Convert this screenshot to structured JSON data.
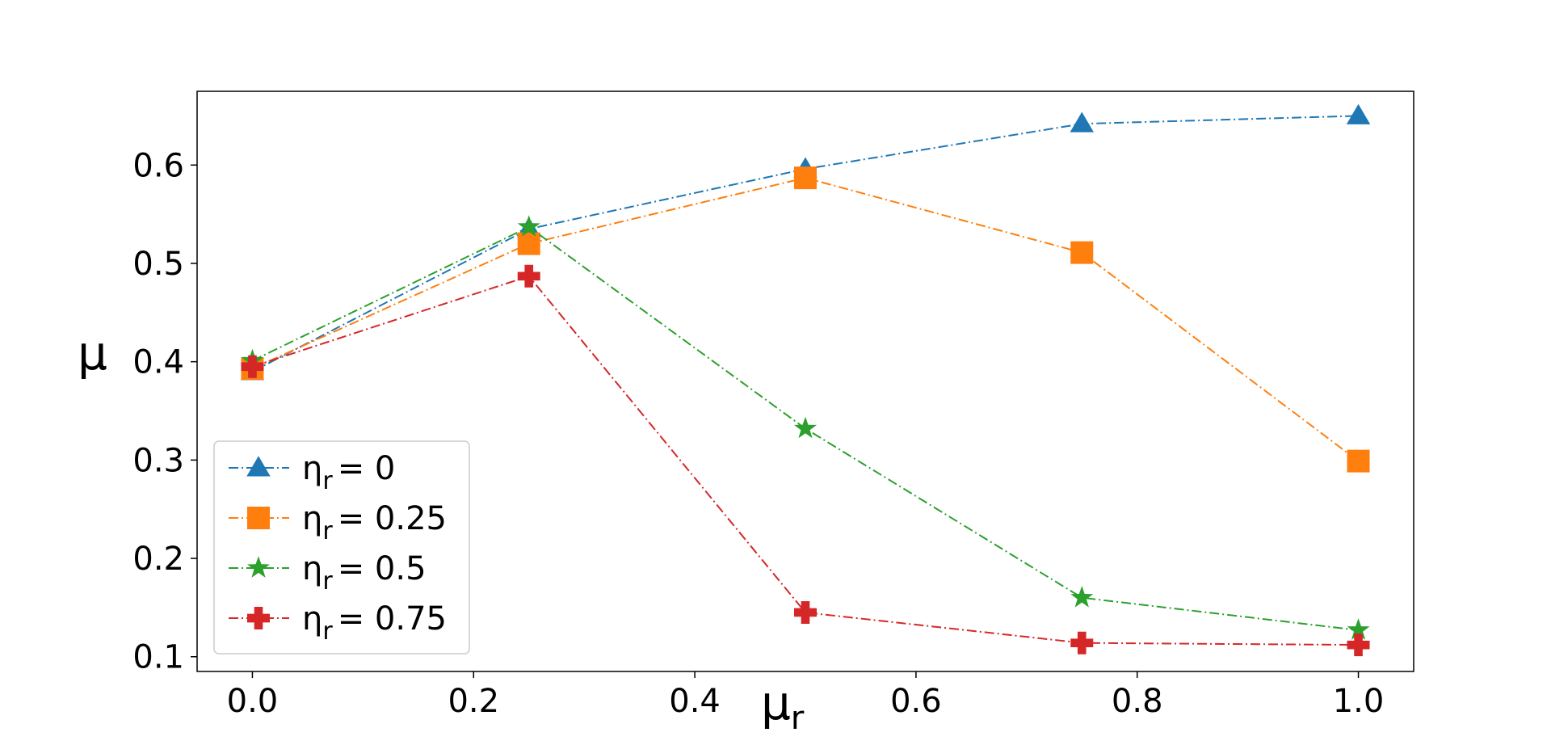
{
  "chart_data": {
    "type": "line",
    "title": "",
    "xlabel": {
      "main": "μ",
      "sub": "r"
    },
    "ylabel": "μ",
    "x": [
      0.0,
      0.25,
      0.5,
      0.75,
      1.0
    ],
    "xlim": [
      -0.05,
      1.05
    ],
    "ylim": [
      0.085,
      0.675
    ],
    "xticks": [
      0.0,
      0.2,
      0.4,
      0.6,
      0.8,
      1.0
    ],
    "xtick_labels": [
      "0.0",
      "0.2",
      "0.4",
      "0.6",
      "0.8",
      "1.0"
    ],
    "yticks": [
      0.1,
      0.2,
      0.3,
      0.4,
      0.5,
      0.6
    ],
    "ytick_labels": [
      "0.1",
      "0.2",
      "0.3",
      "0.4",
      "0.5",
      "0.6"
    ],
    "grid": false,
    "legend_position": "bottom-left",
    "line_style": "dash-dot",
    "series": [
      {
        "name": "η_r = 0",
        "label_main": "η",
        "label_sub": "r",
        "label_rest": "= 0",
        "color": "#1f77b4",
        "marker": "triangle",
        "values": [
          0.39,
          0.535,
          0.596,
          0.642,
          0.65
        ]
      },
      {
        "name": "η_r = 0.25",
        "label_main": "η",
        "label_sub": "r",
        "label_rest": "= 0.25",
        "color": "#ff7f0e",
        "marker": "square",
        "values": [
          0.393,
          0.52,
          0.587,
          0.511,
          0.299
        ]
      },
      {
        "name": "η_r = 0.5",
        "label_main": "η",
        "label_sub": "r",
        "label_rest": "= 0.5",
        "color": "#2ca02c",
        "marker": "star",
        "values": [
          0.401,
          0.537,
          0.332,
          0.16,
          0.127
        ]
      },
      {
        "name": "η_r = 0.75",
        "label_main": "η",
        "label_sub": "r",
        "label_rest": "= 0.75",
        "color": "#d62728",
        "marker": "plus",
        "values": [
          0.395,
          0.487,
          0.145,
          0.114,
          0.112
        ]
      }
    ]
  }
}
